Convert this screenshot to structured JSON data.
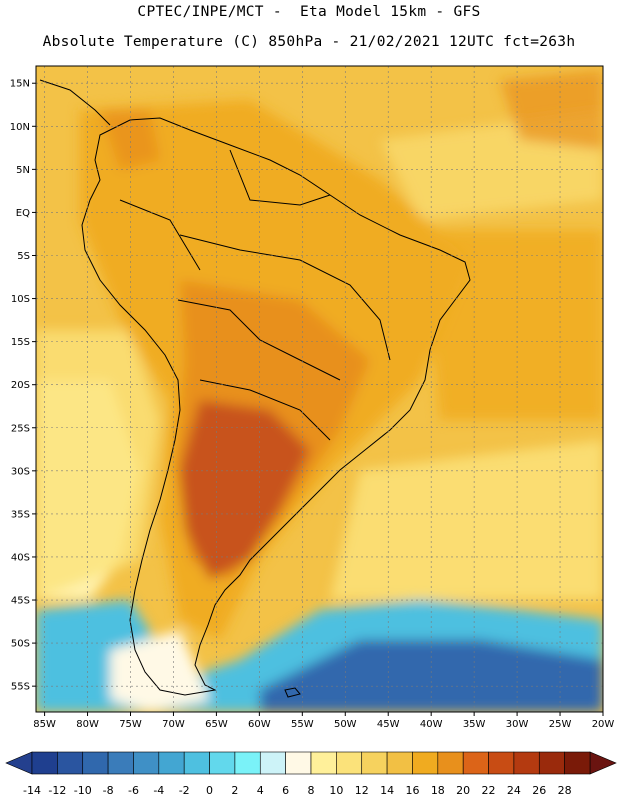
{
  "header": {
    "line1": "CPTEC/INPE/MCT -  Eta Model 15km - GFS",
    "line2": "Absolute Temperature (C) 850hPa - 21/02/2021 12UTC fct=263h"
  },
  "axes": {
    "lat_labels": [
      "15N",
      "10N",
      "5N",
      "EQ",
      "5S",
      "10S",
      "15S",
      "20S",
      "25S",
      "30S",
      "35S",
      "40S",
      "45S",
      "50S",
      "55S"
    ],
    "lon_labels": [
      "85W",
      "80W",
      "75W",
      "70W",
      "65W",
      "60W",
      "55W",
      "50W",
      "45W",
      "40W",
      "35W",
      "30W",
      "25W",
      "20W"
    ]
  },
  "colorbar": {
    "labels": [
      "-14",
      "-12",
      "-10",
      "-8",
      "-6",
      "-4",
      "-2",
      "0",
      "2",
      "4",
      "6",
      "8",
      "10",
      "12",
      "14",
      "16",
      "18",
      "20",
      "22",
      "24",
      "26",
      "28"
    ],
    "colors": [
      "#1f3f8f",
      "#2a55a0",
      "#3068ad",
      "#3a7cba",
      "#3f90c6",
      "#43a6d2",
      "#4ec0e0",
      "#62d8ec",
      "#7af2f8",
      "#cdf3f8",
      "#fff9e6",
      "#fff09a",
      "#fbe27a",
      "#f6d25e",
      "#f2c044",
      "#f0ab20",
      "#e8901c",
      "#dc6418",
      "#c84c14",
      "#b43a10",
      "#9a2a0c",
      "#7a1a08"
    ],
    "low_cap": "#24408e",
    "high_cap": "#6a1410"
  },
  "field": {
    "background": "#f3c247",
    "warm": "#f0ac22",
    "hot": "#e8901c",
    "hottest": "#c8521a",
    "cool": "#fbe27a",
    "pale": "#fff3b0",
    "cold": "#4ec0e0",
    "coldest": "#3068ad"
  }
}
